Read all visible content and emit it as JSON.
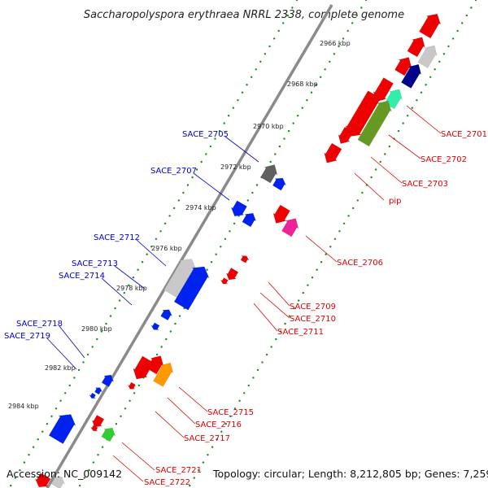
{
  "title": "Saccharopolyspora erythraea NRRL 2338, complete genome",
  "footer": {
    "accession": "Accession: NC_009142",
    "topology": "Topology: circular; Length: 8,212,805 bp; Genes: 7,259"
  },
  "kbp_ticks": [
    "2966 kbp",
    "2968 kbp",
    "2970 kbp",
    "2972 kbp",
    "2974 kbp",
    "2976 kbp",
    "2978 kbp",
    "2980 kbp",
    "2982 kbp",
    "2984 kbp"
  ],
  "forward_labels": [
    "SACE_2705",
    "SACE_2707",
    "SACE_2712",
    "SACE_2713",
    "SACE_2714",
    "SACE_2718",
    "SACE_2719"
  ],
  "reverse_labels": [
    "SACE_2701",
    "SACE_2702",
    "SACE_2703",
    "pip",
    "SACE_2706",
    "SACE_2709",
    "SACE_2710",
    "SACE_2711",
    "SACE_2715",
    "SACE_2716",
    "SACE_2717",
    "SACE_2721",
    "SACE_2722"
  ],
  "colors": {
    "forward_label": "#0000cc",
    "reverse_label": "#dd0000",
    "backbone": "#808080",
    "tick_dots": "#1a8a1a",
    "gene_red": "#ee0000",
    "gene_blue": "#0022ee",
    "gene_navy": "#000088",
    "gene_gray": "#c8c8c8",
    "gene_darkgray": "#606060",
    "gene_teal": "#33eeaa",
    "gene_olive": "#669922",
    "gene_pink": "#ee2299",
    "gene_orange": "#ff9900",
    "gene_green": "#33cc33"
  }
}
